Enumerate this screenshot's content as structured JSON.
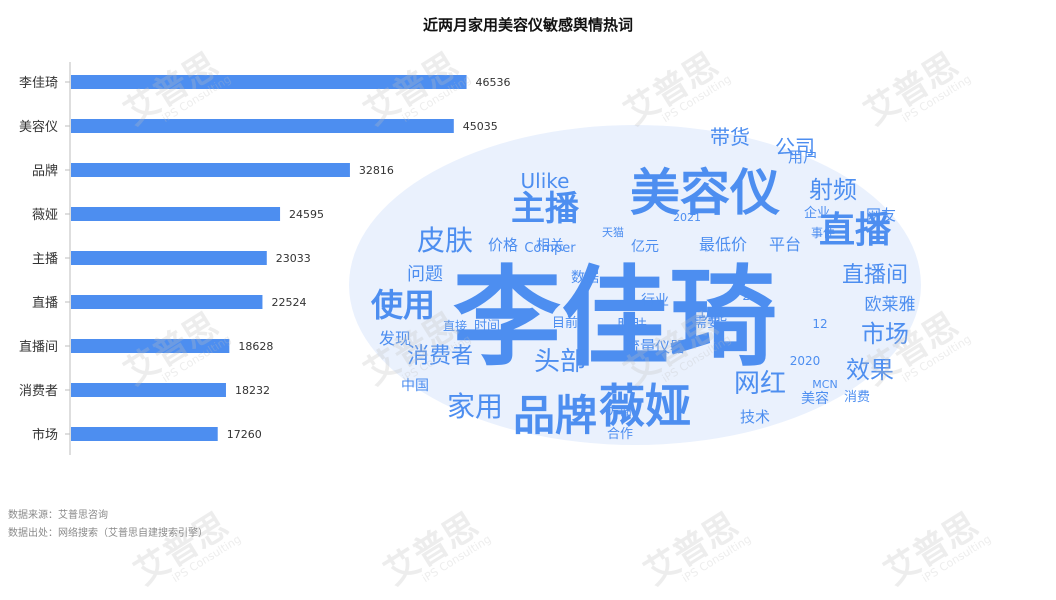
{
  "chart_data": {
    "type": "bar",
    "orientation": "horizontal",
    "title": "近两月家用美容仪敏感舆情热词",
    "categories": [
      "李佳琦",
      "美容仪",
      "品牌",
      "薇娅",
      "主播",
      "直播",
      "直播间",
      "消费者",
      "市场"
    ],
    "values": [
      46536,
      45035,
      32816,
      24595,
      23033,
      22524,
      18628,
      18232,
      17260
    ],
    "xlim": [
      0,
      50000
    ],
    "bar_color": "#4d8ef0",
    "grid": false
  },
  "wordcloud": {
    "color": "#4d8ef0",
    "words": [
      "李佳琦",
      "美容仪",
      "薇娅",
      "品牌",
      "直播",
      "主播",
      "皮肤",
      "使用",
      "射频",
      "直播间",
      "市场",
      "家用",
      "头部",
      "网红",
      "效果",
      "消费者",
      "带货",
      "公司",
      "Ulike",
      "问题",
      "欧莱雅",
      "发现",
      "最低价",
      "平台",
      "流量",
      "仪器",
      "网友",
      "技术",
      "肌肤",
      "功能",
      "需要",
      "行业",
      "数据",
      "价格",
      "相关",
      "用户",
      "Comper",
      "亿元",
      "中国",
      "美容",
      "消费",
      "企业",
      "事件",
      "合作",
      "方面",
      "目前",
      "时间",
      "直接",
      "2021",
      "2020",
      "20",
      "12",
      "MCN",
      "天猫"
    ]
  },
  "watermark": {
    "brand": "艾普思",
    "sub": "iPS Consulting",
    "logo": "iPS"
  },
  "source": {
    "line1": "数据来源：艾普思咨询",
    "line2": "数据出处：网络搜索（艾普思自建搜索引擎）"
  }
}
